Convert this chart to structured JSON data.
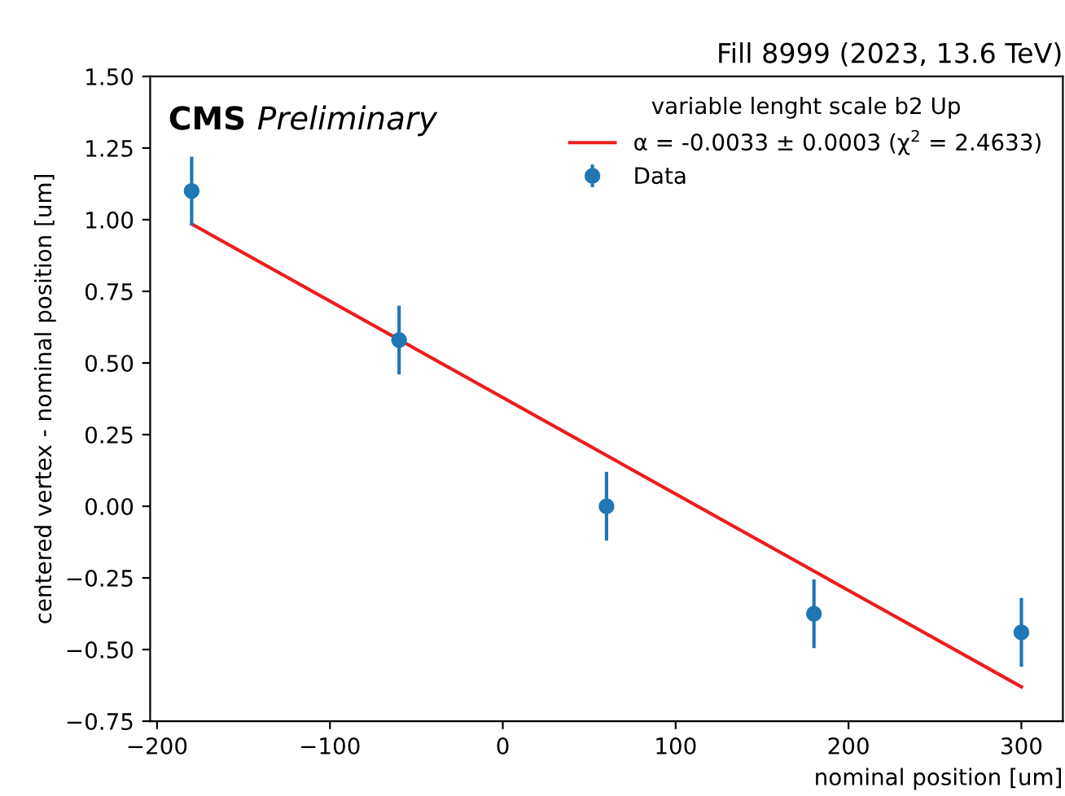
{
  "chart_data": {
    "type": "scatter",
    "title": "Fill 8999 (2023, 13.6 TeV)",
    "xlabel": "nominal position [um]",
    "ylabel": "centered vertex - nominal position [um]",
    "legend_title": "variable lenght scale b2 Up",
    "annotations": [
      "CMS",
      "Preliminary"
    ],
    "series": [
      {
        "type": "line",
        "name": "α = -0.0033 ± 0.0003 (χ$^{2}$ = 2.4633)",
        "color": "#ee1c1c",
        "x": [
          -180,
          300
        ],
        "values": [
          0.985,
          -0.63
        ],
        "marker": "none"
      },
      {
        "name": "Data",
        "color": "#1f77b4",
        "x": [
          -180,
          -60,
          60,
          180,
          300
        ],
        "values": [
          1.1,
          0.58,
          0.0,
          -0.375,
          -0.44
        ],
        "errors": [
          0.12,
          0.12,
          0.12,
          0.12,
          0.12
        ],
        "marker": "circle"
      }
    ],
    "xlim": [
      -204,
      324
    ],
    "xticks": [
      -200,
      -100,
      0,
      100,
      200,
      300
    ],
    "ylim": [
      -0.75,
      1.5
    ],
    "yticks": [
      {
        "value": -0.75,
        "label": "−0.75"
      },
      {
        "value": -0.5,
        "label": "−0.50"
      },
      {
        "value": -0.25,
        "label": "−0.25"
      },
      {
        "value": 0,
        "label": "0.00"
      },
      {
        "value": 0.25,
        "label": "0.25"
      },
      {
        "value": 0.5,
        "label": "0.50"
      },
      {
        "value": 0.75,
        "label": "0.75"
      },
      {
        "value": 1.0,
        "label": "1.00"
      },
      {
        "value": 1.25,
        "label": "1.25"
      },
      {
        "value": 1.5,
        "label": "1.50"
      }
    ],
    "legend": "top right",
    "grid": false
  }
}
